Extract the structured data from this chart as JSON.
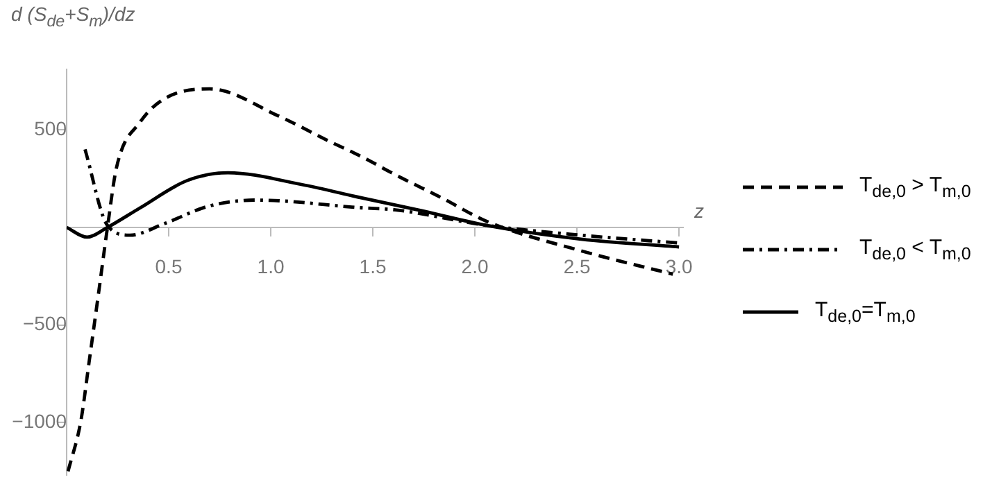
{
  "chart_data": {
    "type": "line",
    "ylabel": "d (S$_{de}$+S$_{m}$)/dz",
    "xlabel": "z",
    "xlim": [
      0,
      3.02
    ],
    "ylim": [
      -1270,
      810
    ],
    "xticks": [
      0.5,
      {
        "value": 1,
        "label": "1.0"
      },
      1.5,
      {
        "value": 2,
        "label": "2.0"
      },
      2.5,
      {
        "value": 3,
        "label": "3.0"
      }
    ],
    "yticks": [
      -1000,
      -500,
      500
    ],
    "legend": "right",
    "marker": "none",
    "series": [
      {
        "name": "T$_{de,0}$ > T$_{m,0}$",
        "color": "#000000",
        "line_style": "dashed",
        "x": [
          0.007,
          0.07,
          0.11,
          0.156,
          0.2,
          0.245,
          0.36,
          0.48,
          0.7,
          1.04,
          1.27,
          1.45,
          1.61,
          1.84,
          2.06,
          2.52,
          2.97
        ],
        "values": [
          -1250,
          -990,
          -690,
          -340,
          0,
          310,
          540,
          660,
          710,
          570,
          450,
          360,
          270,
          150,
          30,
          -120,
          -240
        ]
      },
      {
        "name": "T$_{de,0}$ < T$_{m,0}$",
        "color": "#000000",
        "line_style": "dashdot",
        "x": [
          0.09,
          0.2,
          0.31,
          0.48,
          0.7,
          0.93,
          1.45,
          1.61,
          2.06,
          2.52,
          3.0
        ],
        "values": [
          400,
          10,
          -40,
          20,
          110,
          140,
          100,
          90,
          10,
          -40,
          -80
        ]
      },
      {
        "name": "T$_{de,0}$=T$_{m,0}$",
        "color": "#000000",
        "line_style": "solid",
        "x": [
          0,
          0.1,
          0.2,
          0.36,
          0.59,
          0.79,
          1.15,
          1.45,
          1.72,
          2.06,
          2.52,
          3.0
        ],
        "values": [
          0,
          -50,
          0,
          100,
          240,
          280,
          220,
          150,
          90,
          10,
          -60,
          -100
        ]
      }
    ]
  }
}
